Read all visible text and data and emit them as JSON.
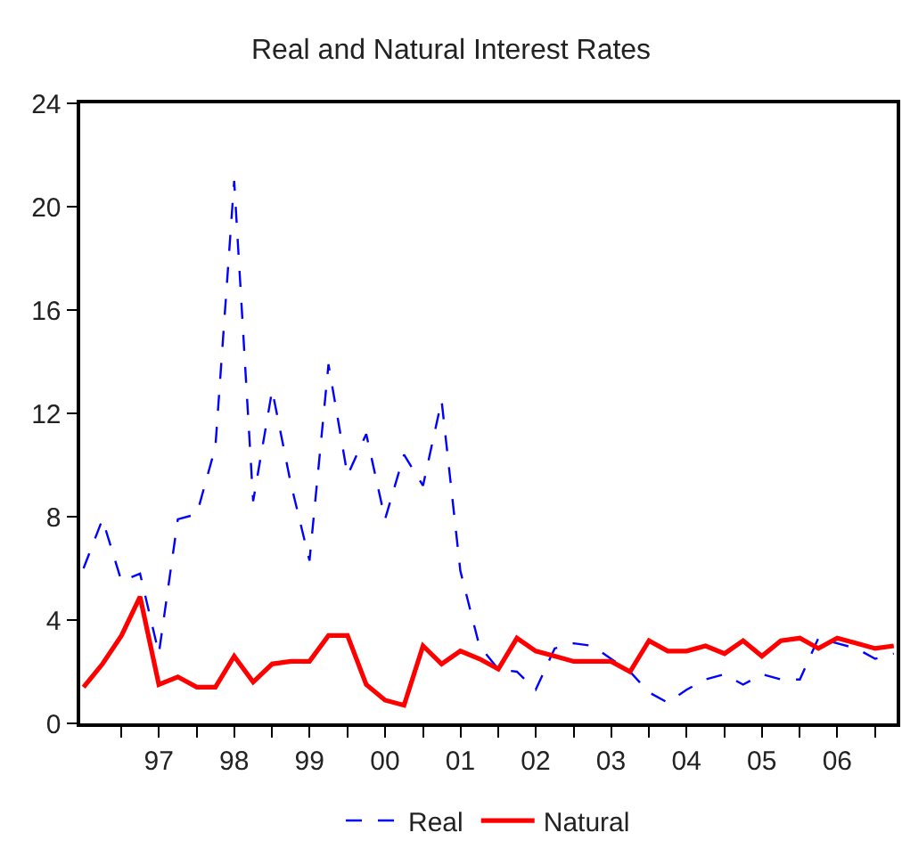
{
  "chart_data": {
    "type": "line",
    "title": "Real and Natural Interest Rates",
    "x": [
      "1996-07",
      "1996-10",
      "1997-01",
      "1997-04",
      "1997-07",
      "1997-10",
      "1998-01",
      "1998-04",
      "1998-07",
      "1998-10",
      "1999-01",
      "1999-04",
      "1999-07",
      "1999-10",
      "2000-01",
      "2000-04",
      "2000-07",
      "2000-10",
      "2001-01",
      "2001-04",
      "2001-07",
      "2001-10",
      "2002-01",
      "2002-04",
      "2002-07",
      "2002-10",
      "2003-01",
      "2003-04",
      "2003-07",
      "2003-10",
      "2004-01",
      "2004-04",
      "2004-07",
      "2004-10",
      "2005-01",
      "2005-04",
      "2005-07",
      "2005-10",
      "2006-01",
      "2006-04",
      "2006-07",
      "2006-10",
      "2007-01",
      "2007-04"
    ],
    "series": [
      {
        "name": "Real",
        "color": "#0000ff",
        "line_style": "dashed",
        "values": [
          6.0,
          7.9,
          5.5,
          5.8,
          2.7,
          7.9,
          8.1,
          10.7,
          21.0,
          8.6,
          12.9,
          9.3,
          6.3,
          13.9,
          9.6,
          11.2,
          7.9,
          10.4,
          9.2,
          12.5,
          5.9,
          3.0,
          2.1,
          2.0,
          1.3,
          2.9,
          3.1,
          3.0,
          2.5,
          2.0,
          1.2,
          0.8,
          1.3,
          1.7,
          1.9,
          1.5,
          1.9,
          1.7,
          1.7,
          3.3,
          3.1,
          2.9,
          2.5,
          2.7
        ]
      },
      {
        "name": "Natural",
        "color": "#ff0000",
        "line_style": "solid",
        "values": [
          1.4,
          2.3,
          3.4,
          4.9,
          1.5,
          1.8,
          1.4,
          1.4,
          2.6,
          1.6,
          2.3,
          2.4,
          2.4,
          3.4,
          3.4,
          1.5,
          0.9,
          0.7,
          3.0,
          2.3,
          2.8,
          2.5,
          2.1,
          3.3,
          2.8,
          2.6,
          2.4,
          2.4,
          2.4,
          2.0,
          3.2,
          2.8,
          2.8,
          3.0,
          2.7,
          3.2,
          2.6,
          3.2,
          3.3,
          2.9,
          3.3,
          3.1,
          2.9,
          3.0
        ]
      }
    ],
    "xlim": [
      "1996-06-15",
      "2007-04-15"
    ],
    "xticks": [
      {
        "value": "1997-01",
        "label": null
      },
      {
        "value": "1997-07",
        "label": "97"
      },
      {
        "value": "1998-01",
        "label": null
      },
      {
        "value": "1998-07",
        "label": "98"
      },
      {
        "value": "1999-01",
        "label": null
      },
      {
        "value": "1999-07",
        "label": "99"
      },
      {
        "value": "2000-01",
        "label": null
      },
      {
        "value": "2000-07",
        "label": "00"
      },
      {
        "value": "2001-01",
        "label": null
      },
      {
        "value": "2001-07",
        "label": "01"
      },
      {
        "value": "2002-01",
        "label": null
      },
      {
        "value": "2002-07",
        "label": "02"
      },
      {
        "value": "2003-01",
        "label": null
      },
      {
        "value": "2003-07",
        "label": "03"
      },
      {
        "value": "2004-01",
        "label": null
      },
      {
        "value": "2004-07",
        "label": "04"
      },
      {
        "value": "2005-01",
        "label": null
      },
      {
        "value": "2005-07",
        "label": "05"
      },
      {
        "value": "2006-01",
        "label": null
      },
      {
        "value": "2006-07",
        "label": "06"
      },
      {
        "value": "2007-01",
        "label": null
      }
    ],
    "ylim": [
      0,
      24
    ],
    "yticks": [
      0,
      4,
      8,
      12,
      16,
      20,
      24
    ],
    "grid": false,
    "legend": "bottom"
  }
}
